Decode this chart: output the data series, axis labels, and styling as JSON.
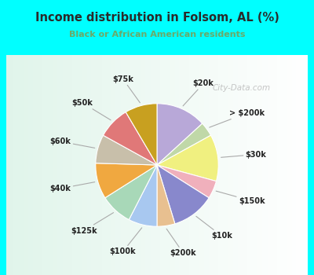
{
  "title": "Income distribution in Folsom, AL (%)",
  "subtitle": "Black or African American residents",
  "title_color": "#2a2a2a",
  "subtitle_color": "#6aaa6a",
  "background_top": "#00ffff",
  "watermark": "City-Data.com",
  "labels": [
    "$20k",
    "> $200k",
    "$30k",
    "$150k",
    "$10k",
    "$200k",
    "$100k",
    "$125k",
    "$40k",
    "$60k",
    "$50k",
    "$75k"
  ],
  "values": [
    14,
    4,
    13,
    5,
    12,
    5,
    8,
    9,
    10,
    8,
    9,
    9
  ],
  "colors": [
    "#b8a8d8",
    "#c0d8a8",
    "#f0f080",
    "#f0b0bc",
    "#8888cc",
    "#e8c090",
    "#a8c8f0",
    "#a8d8b8",
    "#f0a840",
    "#c8bfaa",
    "#e07878",
    "#c8a020"
  ],
  "label_color": "#222222",
  "line_color": "#aaaaaa"
}
